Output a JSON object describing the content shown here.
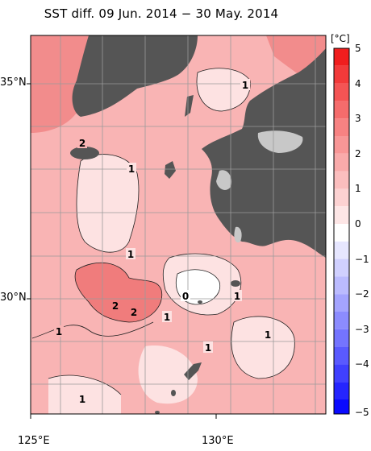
{
  "title": "SST diff. 09 Jun. 2014 − 30 May. 2014",
  "axes": {
    "lat_labels": [
      "35°N",
      "30°N"
    ],
    "lon_labels": [
      "125°E",
      "130°E"
    ]
  },
  "colorbar": {
    "unit": "[°C]",
    "ticks": [
      "5",
      "4",
      "3",
      "2",
      "1",
      "0",
      "−1",
      "−2",
      "−3",
      "−4",
      "−5"
    ],
    "min": -5,
    "max": 5,
    "colors": {
      "warm_max": "#f01e1e",
      "cold_max": "#0a0aff",
      "neutral": "#ffffff"
    }
  },
  "contour_labels": [
    "1",
    "2",
    "1",
    "1",
    "2",
    "2",
    "1",
    "0",
    "1",
    "1",
    "1",
    "1",
    "1"
  ],
  "colors": {
    "land": "#555555",
    "lakes_bays": "#c8c8c8",
    "sea_light": "#fde2e2",
    "sea_mid": "#f9b4b4",
    "sea_strong": "#f07c7c",
    "grid": "#9a9a9a"
  }
}
